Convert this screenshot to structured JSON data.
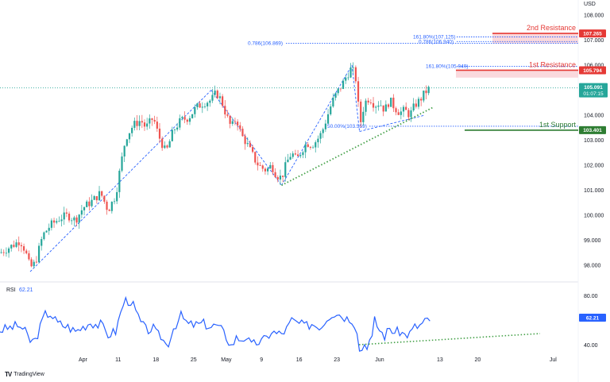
{
  "currency_label": "USD",
  "brand": {
    "logo": "TV",
    "name": "TradingView"
  },
  "chart_data": [
    {
      "type": "candlestick",
      "panel": "price",
      "yticks": [
        98.0,
        99.0,
        100.0,
        101.0,
        102.0,
        103.0,
        104.0,
        105.0,
        106.0,
        107.0,
        108.0
      ],
      "ylim": [
        97.5,
        108.6
      ],
      "xticks": [
        {
          "label": "Apr",
          "x": 33
        },
        {
          "label": "11",
          "x": 47
        },
        {
          "label": "18",
          "x": 62
        },
        {
          "label": "25",
          "x": 77
        },
        {
          "label": "May",
          "x": 90
        },
        {
          "label": "9",
          "x": 104
        },
        {
          "label": "16",
          "x": 119
        },
        {
          "label": "23",
          "x": 134
        },
        {
          "label": "Jun",
          "x": 151
        },
        {
          "label": "13",
          "x": 175
        },
        {
          "label": "20",
          "x": 190
        },
        {
          "label": "Jul",
          "x": 220
        }
      ],
      "xlim": [
        0,
        230
      ],
      "close_path": [
        [
          0,
          98.5
        ],
        [
          5,
          98.8
        ],
        [
          8,
          99.0
        ],
        [
          10,
          98.6
        ],
        [
          12,
          97.9
        ],
        [
          14,
          98.1
        ],
        [
          17,
          99.2
        ],
        [
          20,
          99.6
        ],
        [
          24,
          99.9
        ],
        [
          27,
          100.0
        ],
        [
          30,
          99.8
        ],
        [
          33,
          100.3
        ],
        [
          37,
          100.6
        ],
        [
          40,
          100.9
        ],
        [
          43,
          100.2
        ],
        [
          46,
          100.8
        ],
        [
          48,
          102.0
        ],
        [
          50,
          103.1
        ],
        [
          53,
          103.6
        ],
        [
          56,
          103.8
        ],
        [
          58,
          103.5
        ],
        [
          61,
          103.9
        ],
        [
          63,
          103.2
        ],
        [
          66,
          102.5
        ],
        [
          69,
          103.4
        ],
        [
          72,
          103.8
        ],
        [
          75,
          103.9
        ],
        [
          78,
          104.3
        ],
        [
          81,
          104.5
        ],
        [
          84,
          104.6
        ],
        [
          86,
          104.9
        ],
        [
          88,
          104.6
        ],
        [
          90,
          104.0
        ],
        [
          92,
          103.5
        ],
        [
          94,
          103.9
        ],
        [
          96,
          103.2
        ],
        [
          98,
          102.9
        ],
        [
          100,
          102.5
        ],
        [
          102,
          102.1
        ],
        [
          104,
          101.9
        ],
        [
          106,
          101.8
        ],
        [
          108,
          102.0
        ],
        [
          110,
          101.6
        ],
        [
          112,
          101.5
        ],
        [
          114,
          102.1
        ],
        [
          116,
          102.5
        ],
        [
          118,
          102.2
        ],
        [
          120,
          102.6
        ],
        [
          122,
          102.9
        ],
        [
          124,
          102.8
        ],
        [
          126,
          103.0
        ],
        [
          128,
          103.3
        ],
        [
          130,
          103.9
        ],
        [
          132,
          104.5
        ],
        [
          134,
          104.9
        ],
        [
          136,
          105.2
        ],
        [
          138,
          105.6
        ],
        [
          140,
          105.9
        ],
        [
          142,
          105.3
        ],
        [
          143,
          103.5
        ],
        [
          145,
          104.5
        ],
        [
          147,
          104.7
        ],
        [
          149,
          104.4
        ],
        [
          151,
          104.5
        ],
        [
          153,
          104.2
        ],
        [
          155,
          104.6
        ],
        [
          157,
          104.3
        ],
        [
          159,
          104.1
        ],
        [
          161,
          104.2
        ],
        [
          163,
          104.0
        ],
        [
          165,
          104.4
        ],
        [
          167,
          104.6
        ],
        [
          169,
          104.9
        ],
        [
          171,
          105.09
        ]
      ],
      "current_price": {
        "value": "105.091",
        "countdown": "01:07:15"
      },
      "levels": [
        {
          "name": "2nd Resistance",
          "value": 107.265,
          "tag": "107.265"
        },
        {
          "name": "1st Resistance",
          "value": 105.794,
          "tag": "105.794"
        },
        {
          "name": "1st Support",
          "value": 103.401,
          "tag": "103.401"
        }
      ],
      "fib_labels": [
        {
          "text": "0.786(106.869)",
          "value": 106.869
        },
        {
          "text": "161.80%(107.125)",
          "value": 107.125
        },
        {
          "text": "0.786(106.940)",
          "value": 106.94
        },
        {
          "text": "161.80%(105.949)",
          "value": 105.949
        },
        {
          "text": "50.00%(103.559)",
          "value": 103.559
        }
      ]
    },
    {
      "type": "line",
      "panel": "rsi",
      "title": "RSI",
      "value_label": "62.21",
      "yticks": [
        40.0,
        80.0
      ],
      "ylim": [
        30,
        88
      ],
      "current_tag": "62.21"
    }
  ]
}
